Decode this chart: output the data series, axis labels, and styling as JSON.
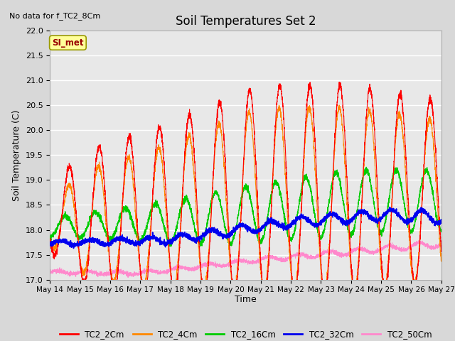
{
  "title": "Soil Temperatures Set 2",
  "subtitle": "No data for f_TC2_8Cm",
  "ylabel": "Soil Temperature (C)",
  "xlabel": "Time",
  "annotation": "SI_met",
  "ylim": [
    17.0,
    22.0
  ],
  "yticks": [
    17.0,
    17.5,
    18.0,
    18.5,
    19.0,
    19.5,
    20.0,
    20.5,
    21.0,
    21.5,
    22.0
  ],
  "xtick_labels": [
    "May 14",
    "May 15",
    "May 16",
    "May 17",
    "May 18",
    "May 19",
    "May 20",
    "May 21",
    "May 22",
    "May 23",
    "May 24",
    "May 25",
    "May 26",
    "May 27"
  ],
  "bg_color": "#d8d8d8",
  "plot_bg_color": "#e8e8e8",
  "grid_color": "white",
  "series_colors": {
    "TC2_2Cm": "#ff0000",
    "TC2_4Cm": "#ff8800",
    "TC2_16Cm": "#00cc00",
    "TC2_32Cm": "#0000ee",
    "TC2_50Cm": "#ff88cc"
  },
  "legend_labels": [
    "TC2_2Cm",
    "TC2_4Cm",
    "TC2_16Cm",
    "TC2_32Cm",
    "TC2_50Cm"
  ]
}
